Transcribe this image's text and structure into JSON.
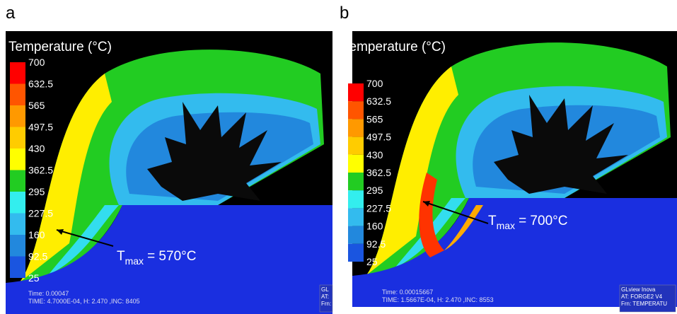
{
  "panels": [
    {
      "label": "a",
      "legend_title": "Temperature (°C)",
      "legend_ticks": [
        "700",
        "632.5",
        "565",
        "497.5",
        "430",
        "362.5",
        "295",
        "227.5",
        "160",
        "92.5",
        "25"
      ],
      "annotation": {
        "symbol": "T",
        "subscript": "max",
        "text": "= 570°C"
      },
      "footer": [
        "Time: 0.00047",
        "TIME: 4.7000E-04, H: 2.470   ,INC: 8405"
      ],
      "badge": [
        "GL",
        "AT:",
        "Frn:"
      ]
    },
    {
      "label": "b",
      "legend_title": "Temperature (°C)",
      "legend_ticks": [
        "700",
        "632.5",
        "565",
        "497.5",
        "430",
        "362.5",
        "295",
        "227.5",
        "160",
        "92.5",
        "25"
      ],
      "annotation": {
        "symbol": "T",
        "subscript": "max",
        "text": "= 700°C"
      },
      "footer": [
        "Time: 0.00015667",
        "TIME: 1.5667E-04, H: 2.470   ,INC: 8553"
      ],
      "badge": [
        "GLview Inova",
        "AT:  FORGE2 V4",
        "Frn:  TEMPERATU"
      ]
    }
  ]
}
